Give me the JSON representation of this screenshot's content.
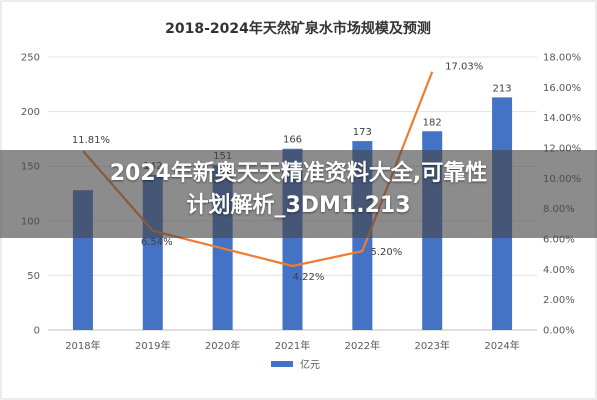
{
  "chart_data": {
    "type": "bar",
    "title": "2018-2024年天然矿泉水市场规模及预测",
    "categories": [
      "2018年",
      "2019年",
      "2020年",
      "2021年",
      "2022年",
      "2023年",
      "2024年"
    ],
    "y_left": {
      "range": [
        0,
        250
      ],
      "ticks": [
        "0",
        "50",
        "100",
        "150",
        "200",
        "250"
      ]
    },
    "y_right": {
      "range": [
        0,
        18
      ],
      "ticks": [
        "0.00%",
        "2.00%",
        "4.00%",
        "6.00%",
        "8.00%",
        "10.00%",
        "12.00%",
        "14.00%",
        "16.00%",
        "18.00%"
      ]
    },
    "series": [
      {
        "name": "亿元",
        "type": "bar",
        "color": "#4472c4",
        "values": [
          128,
          142,
          151,
          166,
          173,
          182,
          213
        ],
        "labels": [
          "",
          "142",
          "151",
          "166",
          "173",
          "182",
          "213"
        ]
      },
      {
        "type": "line",
        "color": "#ed7d31",
        "axis": "right",
        "values": [
          11.81,
          6.54,
          null,
          4.22,
          5.2,
          17.03,
          null
        ],
        "labels": [
          "11.81%",
          "6.54%",
          "",
          "4.22%",
          "5.20%",
          "17.03%",
          ""
        ]
      }
    ],
    "legend_position": "bottom",
    "grid": true
  },
  "overlay": {
    "line1": "2024年新奥天天精准资料大全,可靠性",
    "line2": "计划解析_3DM1.213"
  },
  "colors": {
    "bar": "#4472c4",
    "line": "#ed7d31",
    "overlay": "#464646"
  }
}
